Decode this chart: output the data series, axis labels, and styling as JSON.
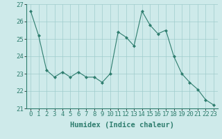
{
  "x": [
    0,
    1,
    2,
    3,
    4,
    5,
    6,
    7,
    8,
    9,
    10,
    11,
    12,
    13,
    14,
    15,
    16,
    17,
    18,
    19,
    20,
    21,
    22,
    23
  ],
  "y": [
    26.6,
    25.2,
    23.2,
    22.8,
    23.1,
    22.8,
    23.1,
    22.8,
    22.8,
    22.5,
    23.0,
    25.4,
    25.1,
    24.6,
    26.6,
    25.8,
    25.3,
    25.5,
    24.0,
    23.0,
    22.5,
    22.1,
    21.5,
    21.2
  ],
  "line_color": "#2e7d6e",
  "marker": "D",
  "marker_size": 2,
  "bg_color": "#ceeaea",
  "grid_color": "#a0cccc",
  "xlabel": "Humidex (Indice chaleur)",
  "ylim": [
    21,
    27
  ],
  "xlim": [
    -0.5,
    23.5
  ],
  "yticks": [
    21,
    22,
    23,
    24,
    25,
    26,
    27
  ],
  "xtick_labels": [
    "0",
    "1",
    "2",
    "3",
    "4",
    "5",
    "6",
    "7",
    "8",
    "9",
    "10",
    "11",
    "12",
    "13",
    "14",
    "15",
    "16",
    "17",
    "18",
    "19",
    "20",
    "21",
    "22",
    "23"
  ],
  "xlabel_fontsize": 7.5,
  "tick_fontsize": 6.5
}
